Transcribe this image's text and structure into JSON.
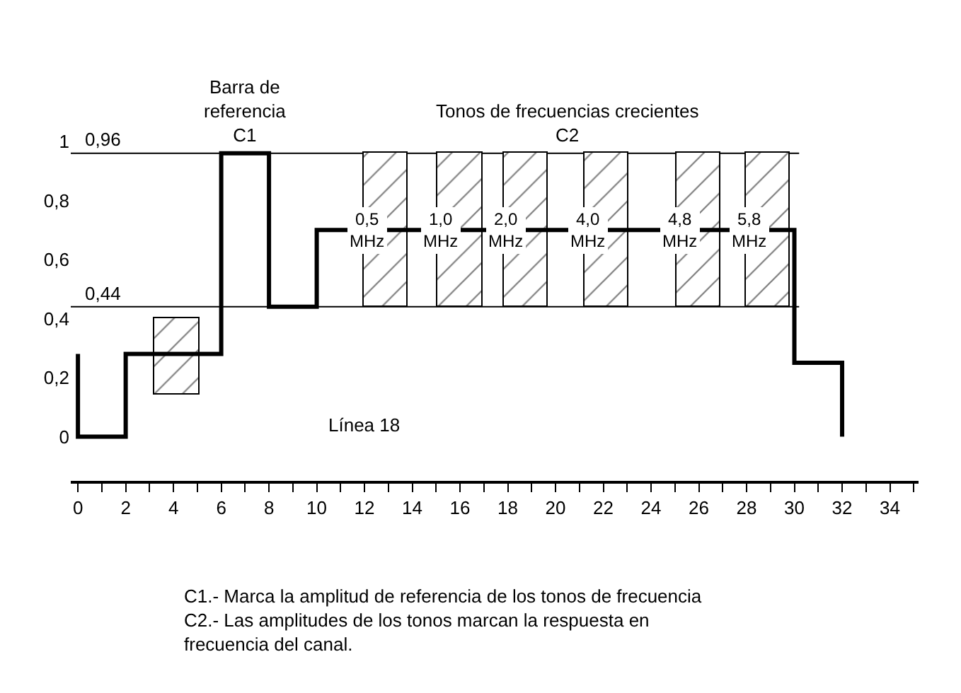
{
  "chart_data": {
    "type": "step",
    "xlim": [
      -0.3,
      35.2
    ],
    "ylim": [
      -0.15,
      1
    ],
    "xticks": [
      0,
      {
        "value": 1,
        "label": null
      },
      2,
      {
        "value": 3,
        "label": null
      },
      4,
      {
        "value": 5,
        "label": null
      },
      6,
      {
        "value": 7,
        "label": null
      },
      8,
      {
        "value": 9,
        "label": null
      },
      10,
      {
        "value": 11,
        "label": null
      },
      12,
      {
        "value": 13,
        "label": null
      },
      14,
      {
        "value": 15,
        "label": null
      },
      16,
      {
        "value": 17,
        "label": null
      },
      18,
      {
        "value": 19,
        "label": null
      },
      20,
      {
        "value": 21,
        "label": null
      },
      22,
      {
        "value": 23,
        "label": null
      },
      24,
      {
        "value": 25,
        "label": null
      },
      26,
      {
        "value": 27,
        "label": null
      },
      28,
      {
        "value": 29,
        "label": null
      },
      30,
      {
        "value": 31,
        "label": null
      },
      32,
      {
        "value": 33,
        "label": null
      },
      34,
      {
        "value": 35,
        "label": null
      }
    ],
    "yticks": [
      0,
      {
        "value": 0.2,
        "label": "0,2"
      },
      {
        "value": 0.4,
        "label": "0,4"
      },
      {
        "value": 0.6,
        "label": "0,6"
      },
      {
        "value": 0.8,
        "label": "0,8"
      },
      1
    ],
    "grid": false,
    "series": [
      {
        "color": "#000000",
        "x": [
          0,
          0,
          2,
          6,
          8,
          10,
          30,
          32
        ],
        "values": [
          0.28,
          0,
          0.28,
          0.96,
          0.44,
          0.7,
          0.25,
          0
        ]
      },
      {
        "type": "bar",
        "color": "#000000",
        "x": [
          4.15,
          12.9,
          16,
          18.75,
          22.15,
          26,
          28.9
        ],
        "base": [
          0.14,
          0.44,
          0.44,
          0.44,
          0.44,
          0.44,
          0.44
        ],
        "values": [
          0.26,
          0.52,
          0.52,
          0.52,
          0.52,
          0.52,
          0.52
        ]
      }
    ],
    "ref_lines": [
      {
        "axis": "y",
        "value": 0.96,
        "label": "0,96",
        "color": "#000000"
      },
      {
        "axis": "y",
        "value": 0.44,
        "label": "0,44",
        "color": "#000000"
      }
    ],
    "annotations": [
      {
        "text": "0,5\nMHz",
        "x": 12.9,
        "y": 0.7
      },
      {
        "text": "1,0\nMHz",
        "x": 16,
        "y": 0.7
      },
      {
        "text": "2,0\nMHz",
        "x": 18.75,
        "y": 0.7
      },
      {
        "text": "4,0\nMHz",
        "x": 22.15,
        "y": 0.7
      },
      {
        "text": "4,8\nMHz",
        "x": 26,
        "y": 0.7
      },
      {
        "text": "5,8\nMHz",
        "x": 28.9,
        "y": 0.7
      },
      {
        "text": "Barra de\nreferencia\nC1",
        "x": 7,
        "y": 0.96
      },
      {
        "text": "Tonos de frecuencias crecientes\nC2",
        "x": 20.5,
        "y": 0.96
      },
      "Línea 18",
      "C1.- Marca la amplitud de referencia de los tonos de frecuencia\nC2.- Las amplitudes de los tonos marcan la respuesta en\nfrecuencia del canal."
    ]
  }
}
